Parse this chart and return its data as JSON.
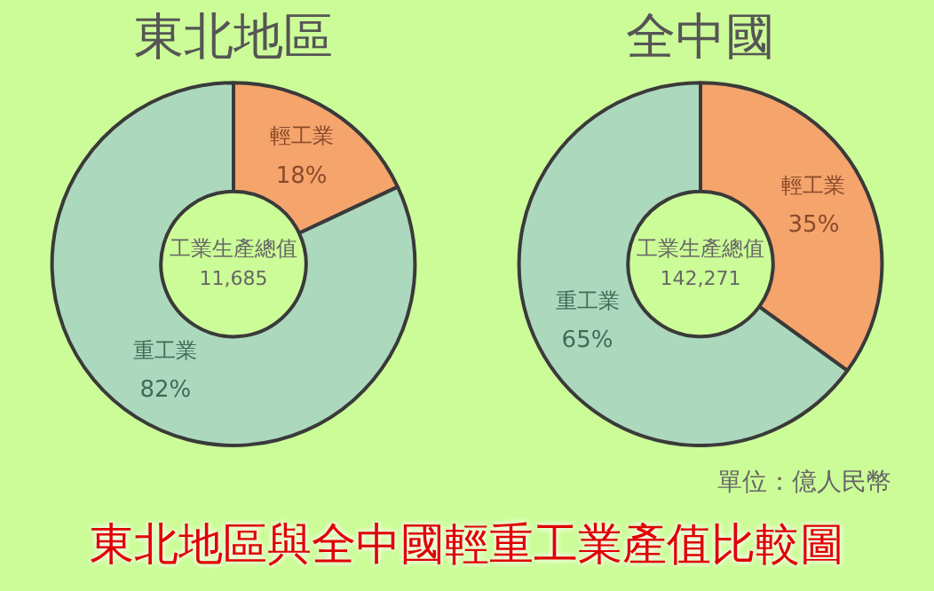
{
  "chart_data": [
    {
      "type": "donut",
      "title": "東北地區",
      "categories": [
        "輕工業",
        "重工業"
      ],
      "values": [
        18,
        82
      ],
      "value_labels": [
        "18%",
        "82%"
      ],
      "colors": [
        "#f5a46c",
        "#acd9bd"
      ],
      "legend": false,
      "annotations": [
        "工業生產總值",
        "11,685"
      ]
    },
    {
      "type": "donut",
      "title": "全中國",
      "categories": [
        "輕工業",
        "重工業"
      ],
      "values": [
        35,
        65
      ],
      "value_labels": [
        "35%",
        "65%"
      ],
      "colors": [
        "#f5a46c",
        "#acd9bd"
      ],
      "legend": false,
      "annotations": [
        "工業生產總值",
        "142,271",
        "單位：億人民幣",
        "東北地區與全中國輕重工業產值比較圖"
      ]
    }
  ]
}
